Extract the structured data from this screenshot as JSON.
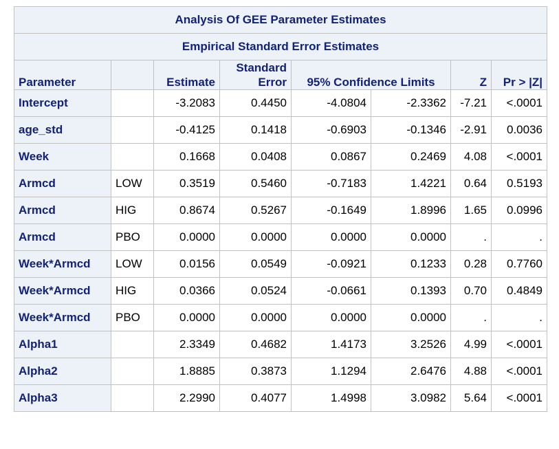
{
  "table": {
    "title": "Analysis Of GEE Parameter Estimates",
    "subtitle": "Empirical Standard Error Estimates",
    "headers": {
      "parameter": "Parameter",
      "level": "",
      "estimate": "Estimate",
      "stderr_line1": "Standard",
      "stderr_line2": "Error",
      "ci": "95% Confidence Limits",
      "z": "Z",
      "p": "Pr > |Z|"
    },
    "rows": [
      {
        "parameter": "Intercept",
        "level": "",
        "estimate": "-3.2083",
        "stderr": "0.4450",
        "lcl": "-4.0804",
        "ucl": "-2.3362",
        "z": "-7.21",
        "p": "<.0001"
      },
      {
        "parameter": "age_std",
        "level": "",
        "estimate": "-0.4125",
        "stderr": "0.1418",
        "lcl": "-0.6903",
        "ucl": "-0.1346",
        "z": "-2.91",
        "p": "0.0036"
      },
      {
        "parameter": "Week",
        "level": "",
        "estimate": "0.1668",
        "stderr": "0.0408",
        "lcl": "0.0867",
        "ucl": "0.2469",
        "z": "4.08",
        "p": "<.0001"
      },
      {
        "parameter": "Armcd",
        "level": "LOW",
        "estimate": "0.3519",
        "stderr": "0.5460",
        "lcl": "-0.7183",
        "ucl": "1.4221",
        "z": "0.64",
        "p": "0.5193"
      },
      {
        "parameter": "Armcd",
        "level": "HIG",
        "estimate": "0.8674",
        "stderr": "0.5267",
        "lcl": "-0.1649",
        "ucl": "1.8996",
        "z": "1.65",
        "p": "0.0996"
      },
      {
        "parameter": "Armcd",
        "level": "PBO",
        "estimate": "0.0000",
        "stderr": "0.0000",
        "lcl": "0.0000",
        "ucl": "0.0000",
        "z": ".",
        "p": "."
      },
      {
        "parameter": "Week*Armcd",
        "level": "LOW",
        "estimate": "0.0156",
        "stderr": "0.0549",
        "lcl": "-0.0921",
        "ucl": "0.1233",
        "z": "0.28",
        "p": "0.7760"
      },
      {
        "parameter": "Week*Armcd",
        "level": "HIG",
        "estimate": "0.0366",
        "stderr": "0.0524",
        "lcl": "-0.0661",
        "ucl": "0.1393",
        "z": "0.70",
        "p": "0.4849"
      },
      {
        "parameter": "Week*Armcd",
        "level": "PBO",
        "estimate": "0.0000",
        "stderr": "0.0000",
        "lcl": "0.0000",
        "ucl": "0.0000",
        "z": ".",
        "p": "."
      },
      {
        "parameter": "Alpha1",
        "level": "",
        "estimate": "2.3349",
        "stderr": "0.4682",
        "lcl": "1.4173",
        "ucl": "3.2526",
        "z": "4.99",
        "p": "<.0001"
      },
      {
        "parameter": "Alpha2",
        "level": "",
        "estimate": "1.8885",
        "stderr": "0.3873",
        "lcl": "1.1294",
        "ucl": "2.6476",
        "z": "4.88",
        "p": "<.0001"
      },
      {
        "parameter": "Alpha3",
        "level": "",
        "estimate": "2.2990",
        "stderr": "0.4077",
        "lcl": "1.4998",
        "ucl": "3.0982",
        "z": "5.64",
        "p": "<.0001"
      }
    ]
  },
  "colors": {
    "header_bg": "#edf2f9",
    "header_text": "#112277",
    "border": "#c1c1c1"
  }
}
